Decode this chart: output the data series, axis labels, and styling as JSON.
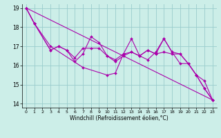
{
  "xlabel": "Windchill (Refroidissement éolien,°C)",
  "xlim": [
    -0.5,
    23.5
  ],
  "ylim": [
    13.8,
    19.2
  ],
  "yticks": [
    14,
    15,
    16,
    17,
    18,
    19
  ],
  "xticks": [
    0,
    1,
    2,
    3,
    4,
    5,
    6,
    7,
    8,
    9,
    10,
    11,
    12,
    13,
    14,
    15,
    16,
    17,
    18,
    19,
    20,
    21,
    22,
    23
  ],
  "background_color": "#cceee8",
  "grid_color": "#99cccc",
  "line_color": "#aa00aa",
  "lines": [
    {
      "x": [
        0,
        1,
        3,
        7,
        10,
        11,
        12,
        13,
        14,
        15,
        16,
        17,
        18,
        19,
        20,
        21,
        22,
        23
      ],
      "y": [
        19.0,
        18.2,
        17.0,
        15.9,
        15.5,
        15.6,
        16.6,
        17.4,
        16.5,
        16.3,
        16.7,
        17.4,
        16.7,
        16.1,
        16.1,
        15.5,
        14.8,
        14.2
      ],
      "markers": true
    },
    {
      "x": [
        0,
        1,
        3,
        4,
        5,
        6,
        7,
        8,
        9,
        10,
        11,
        12,
        13,
        14,
        15,
        16,
        17,
        18,
        19,
        20,
        21,
        22,
        23
      ],
      "y": [
        19.0,
        18.2,
        16.8,
        17.0,
        16.8,
        16.4,
        16.9,
        16.9,
        16.9,
        16.5,
        16.3,
        16.6,
        16.7,
        16.5,
        16.8,
        16.6,
        16.7,
        16.6,
        16.6,
        16.1,
        15.5,
        14.8,
        14.2
      ],
      "markers": true
    },
    {
      "x": [
        0,
        1,
        3,
        4,
        5,
        6,
        7,
        8,
        9,
        10,
        11,
        12,
        13,
        14,
        15,
        16,
        17,
        18,
        19,
        20,
        21,
        22,
        23
      ],
      "y": [
        19.0,
        18.2,
        16.8,
        17.0,
        16.8,
        16.2,
        16.6,
        17.5,
        17.2,
        16.5,
        16.2,
        16.5,
        16.7,
        16.5,
        16.8,
        16.6,
        17.4,
        16.7,
        16.6,
        16.1,
        15.5,
        15.2,
        14.2
      ],
      "markers": true
    },
    {
      "x": [
        0,
        23
      ],
      "y": [
        19.0,
        14.2
      ],
      "markers": false
    }
  ]
}
